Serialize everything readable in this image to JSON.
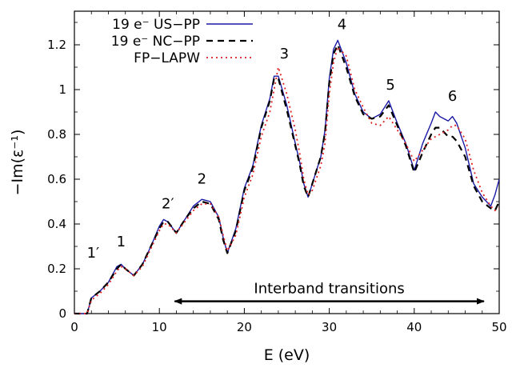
{
  "chart_data": {
    "type": "line",
    "title": "",
    "xlabel": "E (eV)",
    "ylabel": "−Im(ε⁻¹)",
    "xlim": [
      0,
      50
    ],
    "ylim": [
      0,
      1.35
    ],
    "xticks": [
      0,
      10,
      20,
      30,
      40,
      50
    ],
    "yticks": [
      0,
      0.2,
      0.4,
      0.6,
      0.8,
      1,
      1.2
    ],
    "ytick_labels": [
      "0",
      "0.2",
      "0.4",
      "0.6",
      "0.8",
      "1",
      "1.2"
    ],
    "grid": false,
    "legend_position": "top-left",
    "series": [
      {
        "name": "19 e⁻ US−PP",
        "color": "#1a1aa6",
        "dash": "solid",
        "points": [
          [
            0,
            0
          ],
          [
            1.5,
            0
          ],
          [
            2,
            0.07
          ],
          [
            3,
            0.1
          ],
          [
            4,
            0.14
          ],
          [
            5,
            0.21
          ],
          [
            5.5,
            0.22
          ],
          [
            6,
            0.2
          ],
          [
            7,
            0.17
          ],
          [
            8,
            0.22
          ],
          [
            9,
            0.3
          ],
          [
            10,
            0.39
          ],
          [
            10.5,
            0.42
          ],
          [
            11,
            0.41
          ],
          [
            12,
            0.36
          ],
          [
            13,
            0.42
          ],
          [
            14,
            0.48
          ],
          [
            15,
            0.51
          ],
          [
            16,
            0.5
          ],
          [
            17,
            0.43
          ],
          [
            17.5,
            0.34
          ],
          [
            18,
            0.27
          ],
          [
            19,
            0.38
          ],
          [
            20,
            0.56
          ],
          [
            21,
            0.66
          ],
          [
            22,
            0.84
          ],
          [
            23,
            0.96
          ],
          [
            23.5,
            1.06
          ],
          [
            24,
            1.06
          ],
          [
            25,
            0.93
          ],
          [
            26,
            0.76
          ],
          [
            26.5,
            0.68
          ],
          [
            27,
            0.58
          ],
          [
            27.5,
            0.52
          ],
          [
            28,
            0.58
          ],
          [
            29,
            0.7
          ],
          [
            29.5,
            0.82
          ],
          [
            30,
            1.05
          ],
          [
            30.5,
            1.18
          ],
          [
            31,
            1.22
          ],
          [
            32,
            1.12
          ],
          [
            33,
            0.98
          ],
          [
            34,
            0.9
          ],
          [
            35,
            0.87
          ],
          [
            36,
            0.89
          ],
          [
            37,
            0.95
          ],
          [
            38,
            0.85
          ],
          [
            39,
            0.76
          ],
          [
            40,
            0.64
          ],
          [
            41,
            0.76
          ],
          [
            42,
            0.85
          ],
          [
            42.5,
            0.9
          ],
          [
            43,
            0.88
          ],
          [
            44,
            0.86
          ],
          [
            44.5,
            0.88
          ],
          [
            45,
            0.85
          ],
          [
            46,
            0.74
          ],
          [
            47,
            0.58
          ],
          [
            48,
            0.52
          ],
          [
            49,
            0.48
          ],
          [
            49.5,
            0.53
          ],
          [
            50,
            0.6
          ]
        ]
      },
      {
        "name": "19 e⁻ NC−PP",
        "color": "#000000",
        "dash": "dashed",
        "points": [
          [
            0,
            0
          ],
          [
            1.5,
            0
          ],
          [
            2,
            0.07
          ],
          [
            3,
            0.1
          ],
          [
            4,
            0.14
          ],
          [
            5,
            0.2
          ],
          [
            5.5,
            0.22
          ],
          [
            6,
            0.2
          ],
          [
            7,
            0.17
          ],
          [
            8,
            0.22
          ],
          [
            9,
            0.3
          ],
          [
            10,
            0.38
          ],
          [
            10.5,
            0.41
          ],
          [
            11,
            0.41
          ],
          [
            12,
            0.36
          ],
          [
            13,
            0.42
          ],
          [
            14,
            0.47
          ],
          [
            15,
            0.5
          ],
          [
            16,
            0.49
          ],
          [
            17,
            0.42
          ],
          [
            17.5,
            0.33
          ],
          [
            18,
            0.27
          ],
          [
            19,
            0.37
          ],
          [
            20,
            0.55
          ],
          [
            21,
            0.65
          ],
          [
            22,
            0.83
          ],
          [
            23,
            0.95
          ],
          [
            23.5,
            1.05
          ],
          [
            24,
            1.05
          ],
          [
            25,
            0.91
          ],
          [
            26,
            0.75
          ],
          [
            26.5,
            0.67
          ],
          [
            27,
            0.57
          ],
          [
            27.5,
            0.52
          ],
          [
            28,
            0.58
          ],
          [
            29,
            0.7
          ],
          [
            29.5,
            0.81
          ],
          [
            30,
            1.03
          ],
          [
            30.5,
            1.16
          ],
          [
            31,
            1.2
          ],
          [
            32,
            1.1
          ],
          [
            33,
            0.97
          ],
          [
            34,
            0.89
          ],
          [
            35,
            0.87
          ],
          [
            36,
            0.88
          ],
          [
            37,
            0.93
          ],
          [
            38,
            0.84
          ],
          [
            39,
            0.75
          ],
          [
            40,
            0.63
          ],
          [
            41,
            0.72
          ],
          [
            42,
            0.8
          ],
          [
            42.5,
            0.83
          ],
          [
            43,
            0.83
          ],
          [
            44,
            0.79
          ],
          [
            44.5,
            0.79
          ],
          [
            45,
            0.77
          ],
          [
            46,
            0.7
          ],
          [
            47,
            0.57
          ],
          [
            48,
            0.5
          ],
          [
            49,
            0.47
          ],
          [
            49.5,
            0.46
          ],
          [
            50,
            0.5
          ]
        ]
      },
      {
        "name": "FP−LAPW",
        "color": "#e02020",
        "dash": "dotted",
        "points": [
          [
            0,
            0
          ],
          [
            1.5,
            0
          ],
          [
            2,
            0.06
          ],
          [
            3,
            0.09
          ],
          [
            4,
            0.13
          ],
          [
            5,
            0.19
          ],
          [
            5.5,
            0.21
          ],
          [
            6,
            0.2
          ],
          [
            7,
            0.17
          ],
          [
            8,
            0.21
          ],
          [
            9,
            0.29
          ],
          [
            10,
            0.37
          ],
          [
            10.5,
            0.4
          ],
          [
            11,
            0.4
          ],
          [
            12,
            0.36
          ],
          [
            13,
            0.41
          ],
          [
            14,
            0.46
          ],
          [
            15,
            0.49
          ],
          [
            16,
            0.49
          ],
          [
            17,
            0.43
          ],
          [
            17.5,
            0.35
          ],
          [
            18,
            0.28
          ],
          [
            19,
            0.35
          ],
          [
            20,
            0.52
          ],
          [
            21,
            0.62
          ],
          [
            22,
            0.79
          ],
          [
            23,
            0.9
          ],
          [
            23.5,
            1.0
          ],
          [
            24,
            1.1
          ],
          [
            25,
            0.98
          ],
          [
            26,
            0.82
          ],
          [
            26.5,
            0.72
          ],
          [
            27,
            0.6
          ],
          [
            27.5,
            0.53
          ],
          [
            28,
            0.55
          ],
          [
            29,
            0.66
          ],
          [
            29.5,
            0.76
          ],
          [
            30,
            0.98
          ],
          [
            30.5,
            1.12
          ],
          [
            31,
            1.19
          ],
          [
            32,
            1.15
          ],
          [
            33,
            1.0
          ],
          [
            34,
            0.92
          ],
          [
            35,
            0.85
          ],
          [
            36,
            0.84
          ],
          [
            37,
            0.88
          ],
          [
            38,
            0.82
          ],
          [
            39,
            0.76
          ],
          [
            40,
            0.68
          ],
          [
            41,
            0.73
          ],
          [
            42,
            0.78
          ],
          [
            42.5,
            0.79
          ],
          [
            43,
            0.8
          ],
          [
            44,
            0.82
          ],
          [
            44.5,
            0.84
          ],
          [
            45,
            0.84
          ],
          [
            46,
            0.78
          ],
          [
            47,
            0.64
          ],
          [
            48,
            0.54
          ],
          [
            49,
            0.48
          ],
          [
            49.5,
            0.46
          ],
          [
            50,
            0.47
          ]
        ]
      }
    ],
    "annotations": [
      {
        "text": "1′",
        "x": 2.2,
        "y": 0.25
      },
      {
        "text": "1",
        "x": 5.5,
        "y": 0.3
      },
      {
        "text": "2′",
        "x": 11,
        "y": 0.47
      },
      {
        "text": "2",
        "x": 15,
        "y": 0.58
      },
      {
        "text": "3",
        "x": 24.7,
        "y": 1.14
      },
      {
        "text": "4",
        "x": 31.5,
        "y": 1.27
      },
      {
        "text": "5",
        "x": 37.2,
        "y": 1.0
      },
      {
        "text": "6",
        "x": 44.5,
        "y": 0.95
      }
    ],
    "arrow": {
      "text": "Interband transitions",
      "x_start": 11.8,
      "x_end": 48.2,
      "y": 0.055
    }
  }
}
